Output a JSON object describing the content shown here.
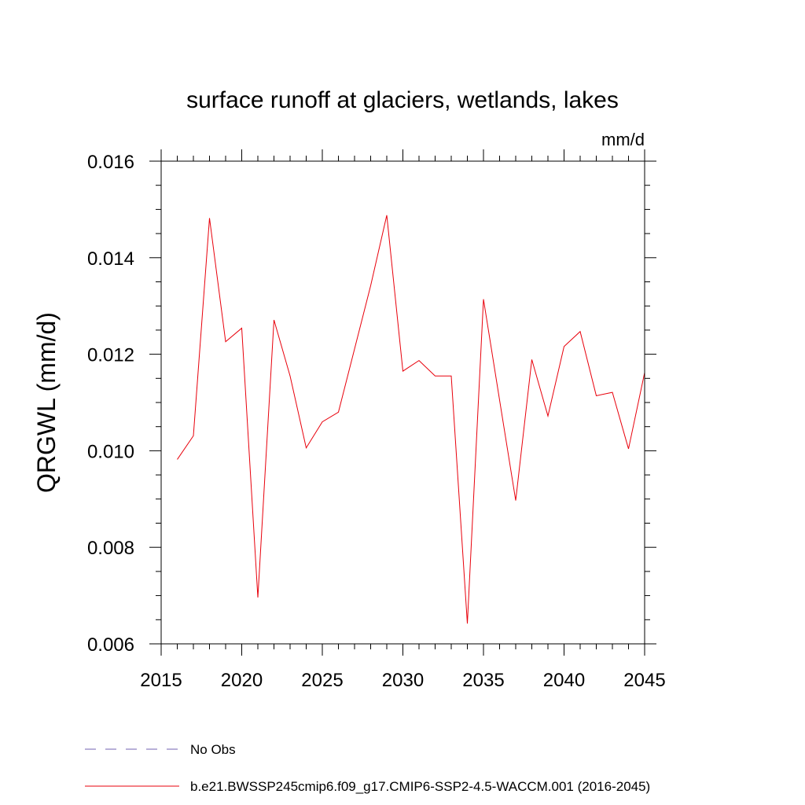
{
  "chart_data": {
    "type": "line",
    "title": "surface runoff at glaciers, wetlands, lakes",
    "units_label": "mm/d",
    "ylabel": "QRGWL  (mm/d)",
    "xlabel": "",
    "xlim": [
      2015,
      2045
    ],
    "ylim": [
      0.006,
      0.016
    ],
    "x_ticks": [
      2015,
      2020,
      2025,
      2030,
      2035,
      2040,
      2045
    ],
    "x_tick_labels": [
      "2015",
      "2020",
      "2025",
      "2030",
      "2035",
      "2040",
      "2045"
    ],
    "y_ticks": [
      0.006,
      0.008,
      0.01,
      0.012,
      0.014,
      0.016
    ],
    "y_tick_labels": [
      "0.006",
      "0.008",
      "0.010",
      "0.012",
      "0.014",
      "0.016"
    ],
    "grid": false,
    "legend_position": "bottom-left",
    "legend": [
      {
        "label": "No Obs",
        "color": "#7060b0",
        "style": "dashed"
      },
      {
        "label": "b.e21.BWSSP245cmip6.f09_g17.CMIP6-SSP2-4.5-WACCM.001 (2016-2045)",
        "color": "#e8000b",
        "style": "solid"
      }
    ],
    "series": [
      {
        "name": "b.e21.BWSSP245cmip6.f09_g17.CMIP6-SSP2-4.5-WACCM.001 (2016-2045)",
        "color": "#e8000b",
        "x": [
          2016,
          2017,
          2018,
          2019,
          2020,
          2021,
          2022,
          2023,
          2024,
          2025,
          2026,
          2027,
          2028,
          2029,
          2030,
          2031,
          2032,
          2033,
          2034,
          2035,
          2036,
          2037,
          2038,
          2039,
          2040,
          2041,
          2042,
          2043,
          2044,
          2045
        ],
        "values": [
          0.00982,
          0.01031,
          0.01482,
          0.01226,
          0.01254,
          0.00696,
          0.01271,
          0.01155,
          0.01006,
          0.0106,
          0.0108,
          0.01211,
          0.01342,
          0.01488,
          0.01165,
          0.01187,
          0.01155,
          0.01155,
          0.00642,
          0.01314,
          0.01105,
          0.00897,
          0.01189,
          0.01072,
          0.01216,
          0.01247,
          0.01114,
          0.01121,
          0.01004,
          0.01162
        ]
      }
    ]
  }
}
